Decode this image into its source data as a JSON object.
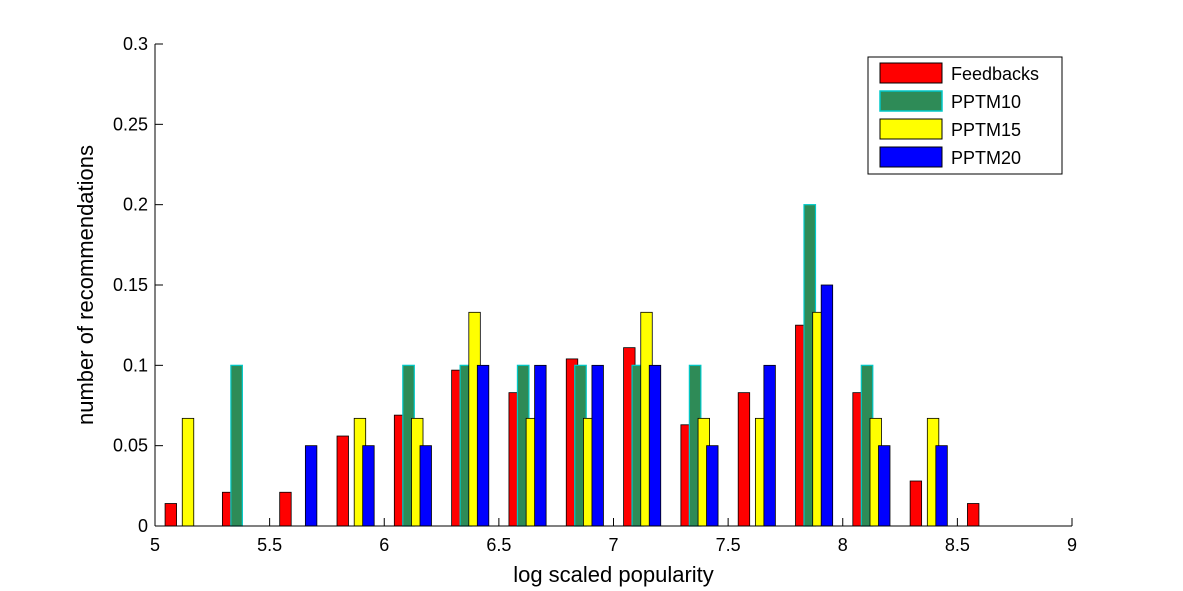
{
  "chart_data": {
    "type": "bar",
    "title": "",
    "xlabel": "log scaled popularity",
    "ylabel": "number of recommendations",
    "xlim": [
      5,
      9
    ],
    "ylim": [
      0,
      0.3
    ],
    "xticks": [
      "5",
      "5.5",
      "6",
      "6.5",
      "7",
      "7.5",
      "8",
      "8.5",
      "9"
    ],
    "yticks": [
      "0",
      "0.05",
      "0.1",
      "0.15",
      "0.2",
      "0.25",
      "0.3"
    ],
    "legend_position": "top-right",
    "x": [
      5.125,
      5.375,
      5.625,
      5.875,
      6.125,
      6.375,
      6.625,
      6.875,
      7.125,
      7.375,
      7.625,
      7.875,
      8.125,
      8.375,
      8.625,
      8.875
    ],
    "series": [
      {
        "name": "Feedbacks",
        "color": "#ff0000",
        "values": [
          0.014,
          0.021,
          0.021,
          0.056,
          0.069,
          0.097,
          0.083,
          0.104,
          0.111,
          0.063,
          0.083,
          0.125,
          0.083,
          0.028,
          0.014,
          0.0
        ]
      },
      {
        "name": "PPTM10",
        "color": "#2e8b57",
        "edge_color": "#00c8c8",
        "values": [
          0.0,
          0.1,
          0.0,
          0.0,
          0.1,
          0.1,
          0.1,
          0.1,
          0.1,
          0.1,
          0.0,
          0.2,
          0.1,
          0.0,
          0.0,
          0.0
        ]
      },
      {
        "name": "PPTM15",
        "color": "#ffff00",
        "values": [
          0.067,
          0.0,
          0.0,
          0.067,
          0.067,
          0.133,
          0.067,
          0.067,
          0.133,
          0.067,
          0.067,
          0.133,
          0.067,
          0.067,
          0.0,
          0.0
        ]
      },
      {
        "name": "PPTM20",
        "color": "#0000ff",
        "values": [
          0.0,
          0.0,
          0.05,
          0.05,
          0.05,
          0.1,
          0.1,
          0.1,
          0.1,
          0.05,
          0.1,
          0.15,
          0.05,
          0.05,
          0.0,
          0.0
        ]
      }
    ]
  }
}
